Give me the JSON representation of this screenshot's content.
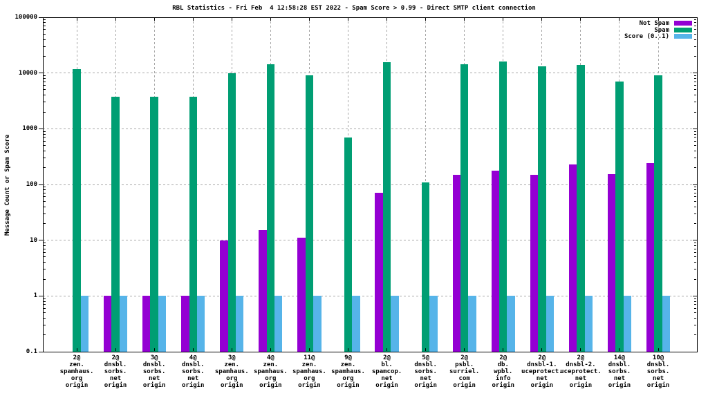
{
  "chart_data": {
    "type": "bar",
    "title": "RBL Statistics - Fri Feb  4 12:58:28 EST 2022 - Spam Score > 0.99 - Direct SMTP client connection",
    "ylabel": "Message Count or Spam Score",
    "xlabel": "",
    "y_scale": "log",
    "ylim": [
      0.1,
      100000
    ],
    "y_ticks": [
      {
        "value": 100000,
        "label": "100000"
      },
      {
        "value": 10000,
        "label": "10000"
      },
      {
        "value": 1000,
        "label": "1000"
      },
      {
        "value": 100,
        "label": "100"
      },
      {
        "value": 10,
        "label": "10"
      },
      {
        "value": 1,
        "label": "1"
      },
      {
        "value": 0.1,
        "label": "0.1"
      }
    ],
    "grid": true,
    "legend_position": "top-right-inside",
    "categories": [
      [
        "2@",
        "zen.",
        "spamhaus.",
        "org",
        "origin"
      ],
      [
        "2@",
        "dnsbl.",
        "sorbs.",
        "net",
        "origin"
      ],
      [
        "3@",
        "dnsbl.",
        "sorbs.",
        "net",
        "origin"
      ],
      [
        "4@",
        "dnsbl.",
        "sorbs.",
        "net",
        "origin"
      ],
      [
        "3@",
        "zen.",
        "spamhaus.",
        "org",
        "origin"
      ],
      [
        "4@",
        "zen.",
        "spamhaus.",
        "org",
        "origin"
      ],
      [
        "11@",
        "zen.",
        "spamhaus.",
        "org",
        "origin"
      ],
      [
        "9@",
        "zen.",
        "spamhaus.",
        "org",
        "origin"
      ],
      [
        "2@",
        "bl.",
        "spamcop.",
        "net",
        "origin"
      ],
      [
        "5@",
        "dnsbl.",
        "sorbs.",
        "net",
        "origin"
      ],
      [
        "2@",
        "psbl.",
        "surriel.",
        "com",
        "origin"
      ],
      [
        "2@",
        "db.",
        "wpbl.",
        "info",
        "origin"
      ],
      [
        "2@",
        "dnsbl-1.",
        "uceprotect.",
        "net",
        "origin"
      ],
      [
        "2@",
        "dnsbl-2.",
        "uceprotect.",
        "net",
        "origin"
      ],
      [
        "14@",
        "dnsbl.",
        "sorbs.",
        "net",
        "origin"
      ],
      [
        "10@",
        "dnsbl.",
        "sorbs.",
        "net",
        "origin"
      ]
    ],
    "series": [
      {
        "name": "Not Spam",
        "color": "#9400d3",
        "values": [
          0,
          1,
          1,
          1,
          10,
          15,
          11,
          0,
          72,
          0,
          150,
          175,
          150,
          230,
          155,
          240
        ]
      },
      {
        "name": "Spam",
        "color": "#009e73",
        "values": [
          11700,
          3750,
          3750,
          3750,
          10000,
          14500,
          9000,
          700,
          15500,
          110,
          14500,
          16000,
          13000,
          14000,
          7000,
          9200
        ]
      },
      {
        "name": "Score (0..1)",
        "color": "#56b4e9",
        "values": [
          1,
          1,
          1,
          1,
          1,
          1,
          1,
          1,
          1,
          1,
          1,
          1,
          1,
          1,
          1,
          1
        ]
      }
    ],
    "colors": {
      "grid": "#a6a6a6",
      "border": "#000000",
      "background": "#ffffff"
    }
  }
}
